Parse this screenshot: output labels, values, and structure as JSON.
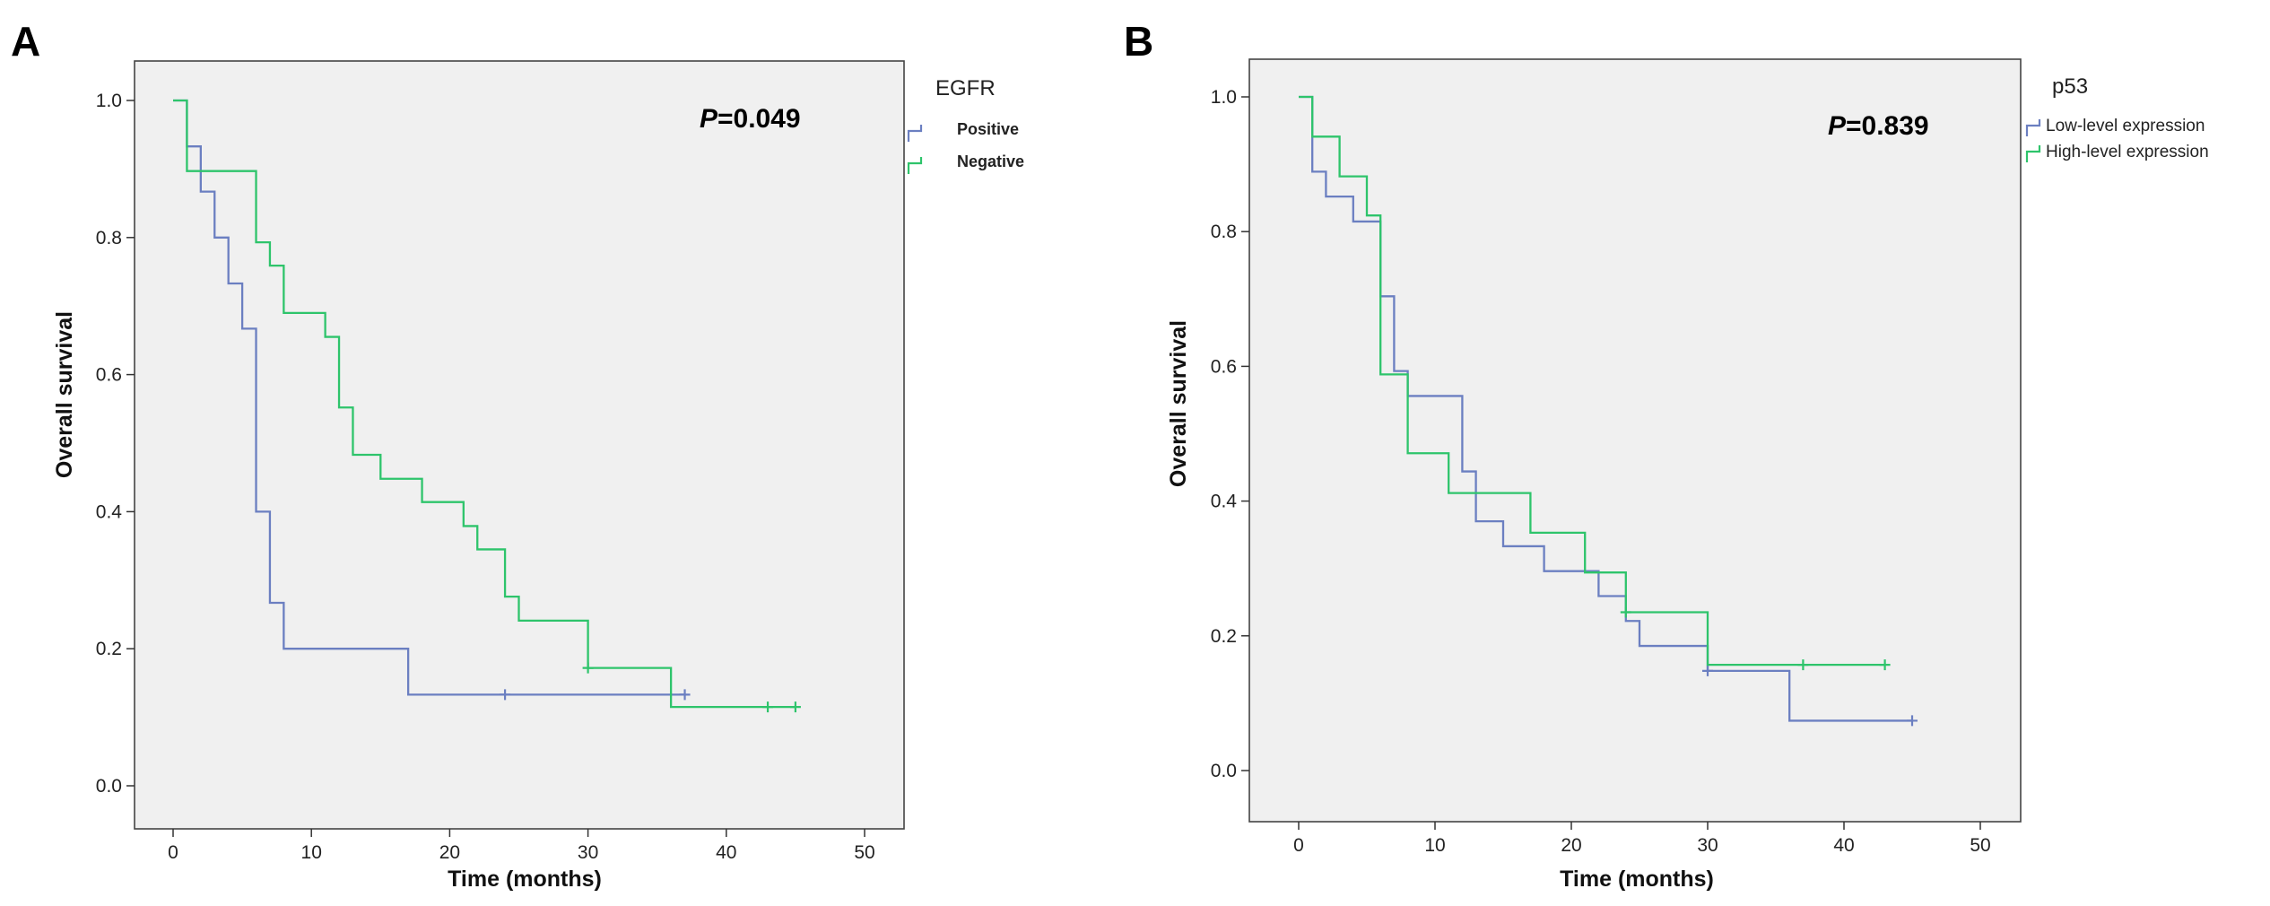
{
  "chart_data": [
    {
      "type": "line",
      "panel_label": "A",
      "pvalue_prefix": "P",
      "pvalue_text": "=0.049",
      "xlabel": "Time (months)",
      "ylabel": "Overall survival",
      "xlim": [
        0,
        50
      ],
      "ylim": [
        0,
        1.0
      ],
      "xticks": [
        "0",
        "10",
        "20",
        "30",
        "40",
        "50"
      ],
      "yticks": [
        "0.0",
        "0.2",
        "0.4",
        "0.6",
        "0.8",
        "1.0"
      ],
      "legend_title": "EGFR",
      "legend_position": "right",
      "series": [
        {
          "name": "Positive",
          "color": "#6b7fc1",
          "steps": [
            [
              0,
              1.0
            ],
            [
              1,
              0.933
            ],
            [
              2,
              0.867
            ],
            [
              3,
              0.8
            ],
            [
              4,
              0.733
            ],
            [
              5,
              0.667
            ],
            [
              6,
              0.4
            ],
            [
              7,
              0.267
            ],
            [
              8,
              0.2
            ],
            [
              17,
              0.133
            ],
            [
              37,
              0.133
            ]
          ],
          "censored": [
            [
              24,
              0.133
            ],
            [
              37,
              0.133
            ]
          ]
        },
        {
          "name": "Negative",
          "color": "#2ec46b",
          "steps": [
            [
              0,
              1.0
            ],
            [
              1,
              0.897
            ],
            [
              6,
              0.793
            ],
            [
              7,
              0.759
            ],
            [
              8,
              0.69
            ],
            [
              11,
              0.655
            ],
            [
              12,
              0.552
            ],
            [
              13,
              0.483
            ],
            [
              15,
              0.448
            ],
            [
              18,
              0.414
            ],
            [
              21,
              0.379
            ],
            [
              22,
              0.345
            ],
            [
              24,
              0.276
            ],
            [
              25,
              0.241
            ],
            [
              30,
              0.172
            ],
            [
              36,
              0.115
            ],
            [
              45,
              0.115
            ]
          ],
          "censored": [
            [
              30,
              0.172
            ],
            [
              43,
              0.115
            ],
            [
              45,
              0.115
            ]
          ]
        }
      ]
    },
    {
      "type": "line",
      "panel_label": "B",
      "pvalue_prefix": "P",
      "pvalue_text": "=0.839",
      "xlabel": "Time (months)",
      "ylabel": "Overall survival",
      "xlim": [
        0,
        50
      ],
      "ylim": [
        0,
        1.0
      ],
      "xticks": [
        "0",
        "10",
        "20",
        "30",
        "40",
        "50"
      ],
      "yticks": [
        "0.0",
        "0.2",
        "0.4",
        "0.6",
        "0.8",
        "1.0"
      ],
      "legend_title": "p53",
      "legend_position": "right",
      "series": [
        {
          "name": "Low-level expression",
          "color": "#6b7fc1",
          "steps": [
            [
              0,
              1.0
            ],
            [
              1,
              0.889
            ],
            [
              2,
              0.852
            ],
            [
              4,
              0.815
            ],
            [
              6,
              0.704
            ],
            [
              7,
              0.593
            ],
            [
              8,
              0.556
            ],
            [
              12,
              0.444
            ],
            [
              13,
              0.37
            ],
            [
              15,
              0.333
            ],
            [
              18,
              0.296
            ],
            [
              22,
              0.259
            ],
            [
              24,
              0.222
            ],
            [
              25,
              0.185
            ],
            [
              30,
              0.148
            ],
            [
              36,
              0.074
            ],
            [
              45,
              0.074
            ]
          ],
          "censored": [
            [
              30,
              0.148
            ],
            [
              45,
              0.074
            ]
          ]
        },
        {
          "name": "High-level expression",
          "color": "#2ec46b",
          "steps": [
            [
              0,
              1.0
            ],
            [
              1,
              0.941
            ],
            [
              3,
              0.882
            ],
            [
              5,
              0.824
            ],
            [
              6,
              0.588
            ],
            [
              8,
              0.471
            ],
            [
              11,
              0.412
            ],
            [
              17,
              0.353
            ],
            [
              21,
              0.294
            ],
            [
              24,
              0.235
            ],
            [
              30,
              0.157
            ],
            [
              43,
              0.157
            ]
          ],
          "censored": [
            [
              24,
              0.235
            ],
            [
              37,
              0.157
            ],
            [
              43,
              0.157
            ]
          ]
        }
      ]
    }
  ]
}
